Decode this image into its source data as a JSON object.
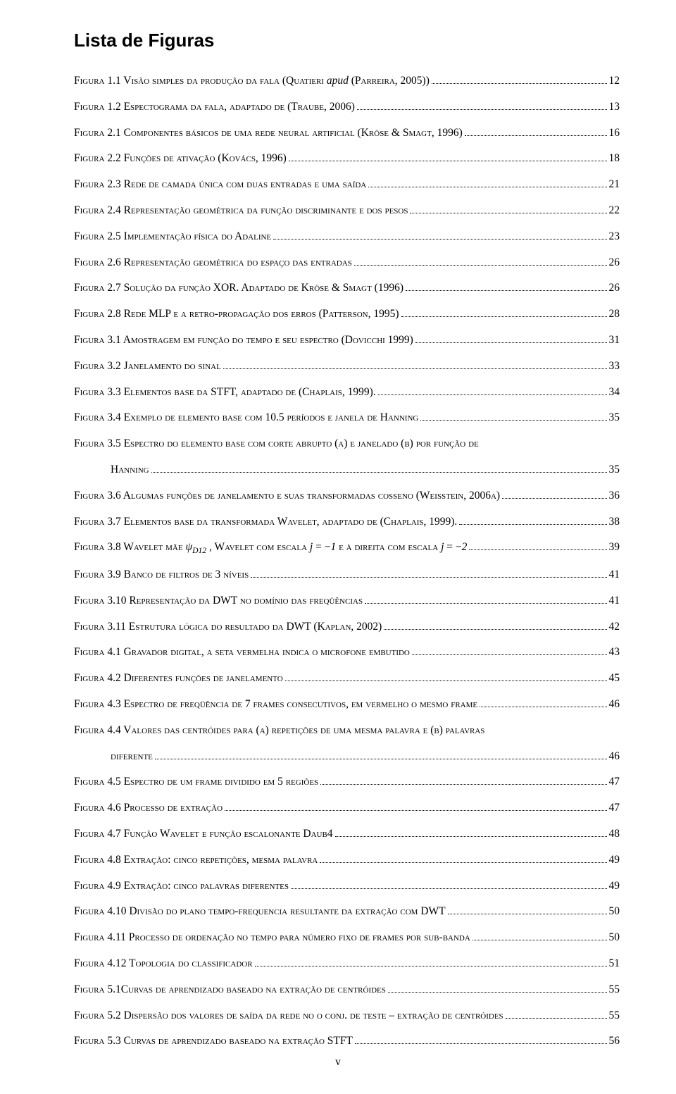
{
  "title": "Lista de Figuras",
  "footer_page": "v",
  "entries": [
    {
      "type": "full",
      "label_html": "Figura 1.1 Visão simples da produção da fala (Quatieri <span class='ital'>apud</span> (Parreira, 2005))",
      "page": "12"
    },
    {
      "type": "full",
      "label_html": "Figura 1.2 Espectograma da fala, adaptado de (Traube, 2006)",
      "page": "13"
    },
    {
      "type": "full",
      "label_html": "Figura 2.1 Componentes básicos de uma rede neural artificial (Kröse & Smagt, 1996)",
      "page": "16"
    },
    {
      "type": "full",
      "label_html": "Figura 2.2 Funções de ativação (Kovács, 1996)",
      "page": "18"
    },
    {
      "type": "full",
      "label_html": "Figura 2.3 Rede de camada única com duas entradas e uma saída",
      "page": "21"
    },
    {
      "type": "full",
      "label_html": "Figura 2.4 Representação geométrica da função discriminante e dos pesos",
      "page": "22"
    },
    {
      "type": "full",
      "label_html": "Figura 2.5 Implementação física do Adaline",
      "page": "23"
    },
    {
      "type": "full",
      "label_html": "Figura 2.6 Representação geométrica do espaço das entradas",
      "page": "26"
    },
    {
      "type": "full",
      "label_html": "Figura 2.7 Solução da função XOR. Adaptado de Kröse & Smagt (1996)",
      "page": "26"
    },
    {
      "type": "full",
      "label_html": "Figura 2.8 Rede MLP e a retro-propagação dos erros (Patterson, 1995)",
      "page": "28"
    },
    {
      "type": "full",
      "label_html": "Figura 3.1 Amostragem em função do tempo e seu espectro (Dovicchi 1999)",
      "page": "31"
    },
    {
      "type": "full",
      "label_html": "Figura 3.2 Janelamento do sinal",
      "page": "33"
    },
    {
      "type": "full",
      "label_html": "Figura 3.3 Elementos base da STFT, adaptado de (Chaplais, 1999).",
      "page": "34"
    },
    {
      "type": "full",
      "label_html": "Figura 3.4 Exemplo de elemento base com 10.5 períodos e janela de Hanning",
      "page": "35"
    },
    {
      "type": "open",
      "label_html": "Figura 3.5 Espectro do elemento base com corte abrupto (a) e janelado (b) por função de"
    },
    {
      "type": "cont",
      "label_html": "Hanning",
      "page": "35"
    },
    {
      "type": "full",
      "label_html": "Figura 3.6 Algumas funções de janelamento e suas transformadas cosseno (Weisstein, 2006a)",
      "page": "36"
    },
    {
      "type": "full",
      "label_html": "Figura 3.7 Elementos base da transformada Wavelet, adaptado de (Chaplais, 1999).",
      "page": "38"
    },
    {
      "type": "full",
      "label_html": "Figura 3.8 Wavelet mãe <span class='math'>ψ</span><span class='sub'>D12</span> , Wavelet com escala <span class='math'>j</span> = −<span class='math'>1</span> e à direita com escala <span class='math'>j</span> = −<span class='math'>2</span>",
      "page": "39"
    },
    {
      "type": "full",
      "label_html": "Figura 3.9 Banco de filtros de 3 níveis",
      "page": "41"
    },
    {
      "type": "full",
      "label_html": "Figura 3.10 Representação da DWT no domínio das freqüências",
      "page": "41"
    },
    {
      "type": "full",
      "label_html": "Figura 3.11 Estrutura lógica do resultado da DWT (Kaplan, 2002)",
      "page": "42"
    },
    {
      "type": "full",
      "label_html": "Figura 4.1 Gravador digital, a seta vermelha indica o microfone embutido",
      "page": "43"
    },
    {
      "type": "full",
      "label_html": "Figura 4.2 Diferentes funções de janelamento",
      "page": "45"
    },
    {
      "type": "full",
      "label_html": "Figura 4.3 Espectro de freqüência de 7 frames consecutivos, em vermelho o mesmo frame",
      "page": "46"
    },
    {
      "type": "open",
      "label_html": "Figura 4.4 Valores das centróides para (a) repetições de uma mesma palavra e (b) palavras"
    },
    {
      "type": "cont",
      "label_html": "diferente",
      "page": "46"
    },
    {
      "type": "full",
      "label_html": "Figura 4.5 Espectro de um frame dividido em 5 regiões",
      "page": "47"
    },
    {
      "type": "full",
      "label_html": "Figura 4.6 Processo de extração",
      "page": "47"
    },
    {
      "type": "full",
      "label_html": "Figura 4.7 Função Wavelet e função escalonante Daub4",
      "page": "48"
    },
    {
      "type": "full",
      "label_html": "Figura 4.8 Extração: cinco repetições, mesma palavra",
      "page": "49"
    },
    {
      "type": "full",
      "label_html": "Figura 4.9 Extração: cinco palavras diferentes",
      "page": "49"
    },
    {
      "type": "full",
      "label_html": "Figura 4.10 Divisão do plano tempo-frequencia resultante da extração com DWT",
      "page": "50"
    },
    {
      "type": "full",
      "label_html": "Figura 4.11 Processo de ordenação no tempo para número fixo de frames por sub-banda",
      "page": "50"
    },
    {
      "type": "full",
      "label_html": "Figura 4.12 Topologia do classificador",
      "page": "51"
    },
    {
      "type": "full",
      "label_html": "Figura 5.1Curvas de aprendizado baseado na extração de centróides",
      "page": "55"
    },
    {
      "type": "full",
      "label_html": "Figura 5.2 Dispersão dos valores de saída da rede no o conj. de teste – extração de centróides",
      "page": "55"
    },
    {
      "type": "full",
      "label_html": "Figura 5.3 Curvas de aprendizado baseado na extração STFT",
      "page": "56"
    }
  ]
}
